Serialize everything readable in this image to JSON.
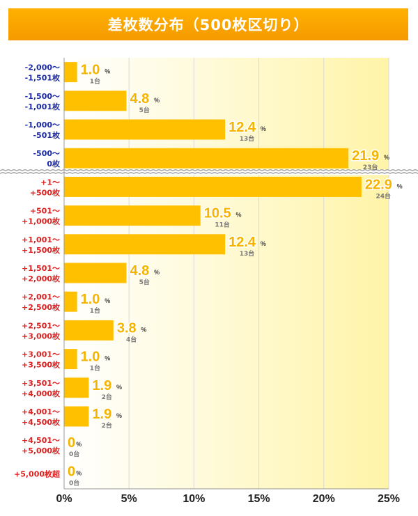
{
  "chart_data": {
    "type": "bar",
    "orientation": "horizontal",
    "title": "差枚数分布（500枚区切り）",
    "value_unit": "%",
    "count_unit": "台",
    "xlim": [
      0,
      25
    ],
    "x_ticks": [
      "0%",
      "5%",
      "10%",
      "15%",
      "20%",
      "25%"
    ],
    "colors": {
      "bar": "#ffc000",
      "value_label": "#f5b400",
      "negative_label": "#1a2aa8",
      "positive_label": "#e01e1e",
      "title_bg": "#f8a500"
    },
    "categories": [
      {
        "line1": "-2,000～",
        "line2": "-1,501枚",
        "sign": "negative",
        "value": 1.0,
        "value_text": "1.0",
        "count": "1台"
      },
      {
        "line1": "-1,500～",
        "line2": "-1,001枚",
        "sign": "negative",
        "value": 4.8,
        "value_text": "4.8",
        "count": "5台"
      },
      {
        "line1": "-1,000～",
        "line2": "-501枚",
        "sign": "negative",
        "value": 12.4,
        "value_text": "12.4",
        "count": "13台"
      },
      {
        "line1": "-500～",
        "line2": "0枚",
        "sign": "negative",
        "value": 21.9,
        "value_text": "21.9",
        "count": "23台"
      },
      {
        "line1": "+1～",
        "line2": "+500枚",
        "sign": "positive",
        "value": 22.9,
        "value_text": "22.9",
        "count": "24台"
      },
      {
        "line1": "+501～",
        "line2": "+1,000枚",
        "sign": "positive",
        "value": 10.5,
        "value_text": "10.5",
        "count": "11台"
      },
      {
        "line1": "+1,001～",
        "line2": "+1,500枚",
        "sign": "positive",
        "value": 12.4,
        "value_text": "12.4",
        "count": "13台"
      },
      {
        "line1": "+1,501～",
        "line2": "+2,000枚",
        "sign": "positive",
        "value": 4.8,
        "value_text": "4.8",
        "count": "5台"
      },
      {
        "line1": "+2,001～",
        "line2": "+2,500枚",
        "sign": "positive",
        "value": 1.0,
        "value_text": "1.0",
        "count": "1台"
      },
      {
        "line1": "+2,501～",
        "line2": "+3,000枚",
        "sign": "positive",
        "value": 3.8,
        "value_text": "3.8",
        "count": "4台"
      },
      {
        "line1": "+3,001～",
        "line2": "+3,500枚",
        "sign": "positive",
        "value": 1.0,
        "value_text": "1.0",
        "count": "1台"
      },
      {
        "line1": "+3,501～",
        "line2": "+4,000枚",
        "sign": "positive",
        "value": 1.9,
        "value_text": "1.9",
        "count": "2台"
      },
      {
        "line1": "+4,001～",
        "line2": "+4,500枚",
        "sign": "positive",
        "value": 1.9,
        "value_text": "1.9",
        "count": "2台"
      },
      {
        "line1": "+4,501～",
        "line2": "+5,000枚",
        "sign": "positive",
        "value": 0,
        "value_text": "0",
        "count": "0台"
      },
      {
        "line1": "+5,000枚超",
        "line2": "",
        "sign": "positive",
        "value": 0,
        "value_text": "0",
        "count": "0台"
      }
    ]
  }
}
